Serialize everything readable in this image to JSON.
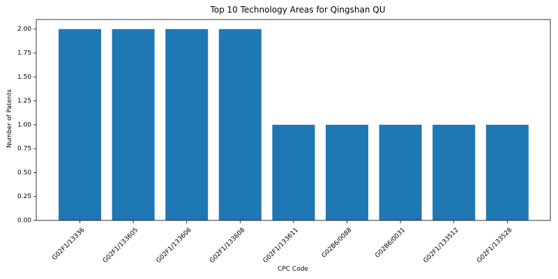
{
  "chart_data": {
    "type": "bar",
    "title": "Top 10 Technology Areas for Qingshan QU",
    "xlabel": "CPC Code",
    "ylabel": "Number of Patents",
    "categories": [
      "G02F1/13336",
      "G02F1/133605",
      "G02F1/133606",
      "G02F1/133608",
      "G02F1/133611",
      "G02B6/0088",
      "G02B6/0031",
      "G02F1/133512",
      "G02F1/133528"
    ],
    "values": [
      2,
      2,
      2,
      2,
      1,
      1,
      1,
      1,
      1
    ],
    "ylim": [
      0,
      2.1
    ],
    "yticks": [
      "0.00",
      "0.25",
      "0.50",
      "0.75",
      "1.00",
      "1.25",
      "1.50",
      "1.75",
      "2.00"
    ],
    "bar_color": "#1f77b4",
    "grid": false,
    "legend": false
  }
}
